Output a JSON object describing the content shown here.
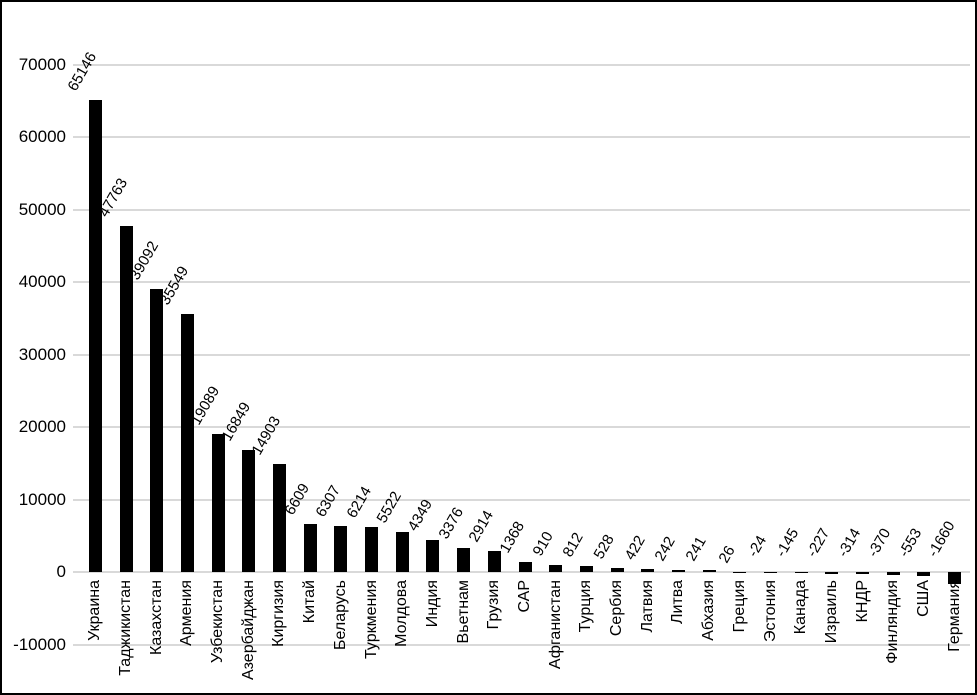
{
  "chart_data": {
    "type": "bar",
    "title": "",
    "xlabel": "",
    "ylabel": "",
    "categories": [
      "Украина",
      "Таджикистан",
      "Казахстан",
      "Армения",
      "Узбекистан",
      "Азербайджан",
      "Киргизия",
      "Китай",
      "Беларусь",
      "Туркмения",
      "Молдова",
      "Индия",
      "Вьетнам",
      "Грузия",
      "САР",
      "Афганистан",
      "Турция",
      "Сербия",
      "Латвия",
      "Литва",
      "Абхазия",
      "Греция",
      "Эстония",
      "Канада",
      "Израиль",
      "КНДР",
      "Финляндия",
      "США",
      "Германия"
    ],
    "values": [
      65146,
      47763,
      39092,
      35549,
      19089,
      16849,
      14903,
      6609,
      6307,
      6214,
      5522,
      4349,
      3376,
      2914,
      1368,
      910,
      812,
      528,
      422,
      242,
      241,
      26,
      -24,
      -145,
      -227,
      -314,
      -370,
      -553,
      -1660
    ],
    "ylim": [
      -10000,
      70000
    ],
    "yticks": [
      -10000,
      0,
      10000,
      20000,
      30000,
      40000,
      50000,
      60000,
      70000
    ],
    "grid": "horizontal",
    "legend": "none",
    "data_labels": "rotated -60deg above bar ends",
    "category_labels": "vertical, reading bottom to top",
    "colors": {
      "bar": "#000000",
      "gridline": "#d9d9d9",
      "text": "#000000",
      "background": "#ffffff",
      "frame_border": "#000000"
    }
  }
}
